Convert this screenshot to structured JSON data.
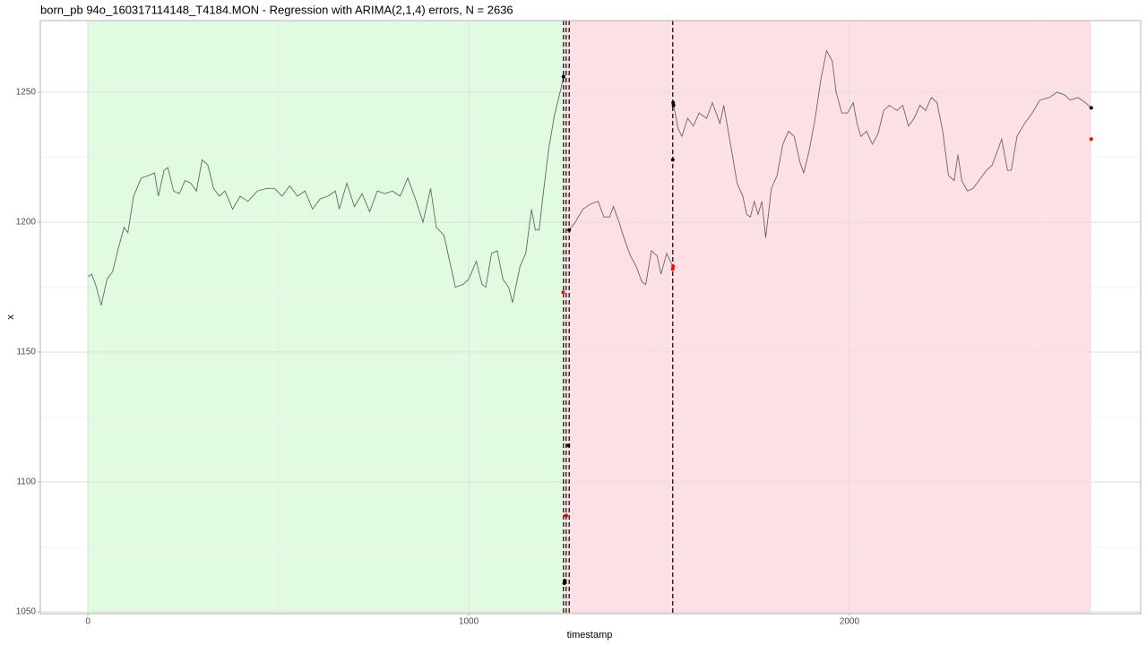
{
  "chart_data": {
    "type": "line",
    "title": "born_pb 94o_160317114148_T4184.MON - Regression with ARIMA(2,1,4) errors, N = 2636",
    "xlabel": "timestamp",
    "ylabel": "x",
    "xlim": [
      -125,
      2765
    ],
    "ylim": [
      1049.3,
      1277.6
    ],
    "xticks": [
      0,
      1000,
      2000
    ],
    "yticks": [
      1050,
      1100,
      1150,
      1200,
      1250
    ],
    "xminor": [
      500,
      1500,
      2500
    ],
    "yminor": [
      1075,
      1125,
      1175,
      1225
    ],
    "grid": true,
    "regions": [
      {
        "start": 0,
        "end": 1249,
        "color": "#e0fbe0"
      },
      {
        "start": 1249,
        "end": 2635,
        "color": "#fde0e3"
      }
    ],
    "vlines": [
      1249,
      1256,
      1264,
      1536
    ],
    "series": [
      {
        "color": "#666666",
        "x": [
          0,
          10,
          20,
          35,
          50,
          65,
          80,
          95,
          105,
          120,
          140,
          160,
          175,
          185,
          200,
          210,
          225,
          240,
          255,
          270,
          285,
          300,
          315,
          330,
          345,
          360,
          380,
          400,
          420,
          445,
          470,
          490,
          510,
          530,
          550,
          570,
          590,
          610,
          630,
          650,
          660,
          680,
          700,
          720,
          740,
          760,
          780,
          800,
          820,
          840,
          860,
          880,
          900,
          915,
          935,
          950,
          965,
          985,
          1000,
          1020,
          1035,
          1045,
          1060,
          1075,
          1090,
          1105,
          1115,
          1125,
          1135,
          1150,
          1165,
          1175,
          1185,
          1195,
          1210,
          1225,
          1240,
          1249
        ],
        "values": [
          1179,
          1180,
          1176,
          1168,
          1178,
          1181,
          1190,
          1198,
          1196,
          1210,
          1217,
          1218,
          1219,
          1210,
          1220,
          1221,
          1212,
          1211,
          1216,
          1215,
          1212,
          1224,
          1222,
          1213,
          1210,
          1212,
          1205,
          1210,
          1208,
          1212,
          1213,
          1213,
          1210,
          1214,
          1210,
          1212,
          1205,
          1209,
          1210,
          1212,
          1205,
          1215,
          1206,
          1211,
          1204,
          1212,
          1211,
          1212,
          1210,
          1217,
          1209,
          1200,
          1213,
          1198,
          1195,
          1185,
          1175,
          1176,
          1178,
          1185,
          1176,
          1175,
          1188,
          1189,
          1178,
          1175,
          1169,
          1176,
          1183,
          1188,
          1205,
          1197,
          1197,
          1210,
          1228,
          1241,
          1250,
          1256
        ]
      },
      {
        "color": "#666666",
        "x": [
          1264,
          1280,
          1300,
          1320,
          1340,
          1355,
          1370,
          1380,
          1395,
          1410,
          1425,
          1440,
          1455,
          1465,
          1480,
          1495,
          1505,
          1520,
          1536
        ],
        "values": [
          1197,
          1200,
          1205,
          1207,
          1208,
          1202,
          1202,
          1206,
          1200,
          1193,
          1187,
          1183,
          1177,
          1176,
          1189,
          1187,
          1180,
          1188,
          1183
        ]
      },
      {
        "color": "#666666",
        "x": [
          1537,
          1550,
          1560,
          1575,
          1590,
          1605,
          1625,
          1640,
          1660,
          1670,
          1690,
          1705,
          1720,
          1730,
          1740,
          1750,
          1760,
          1770,
          1780,
          1795,
          1810,
          1825,
          1840,
          1855,
          1870,
          1880,
          1895,
          1910,
          1925,
          1940,
          1955,
          1965,
          1980,
          1995,
          2010,
          2020,
          2030,
          2045,
          2060,
          2075,
          2090,
          2105,
          2125,
          2140,
          2155,
          2170,
          2185,
          2200,
          2215,
          2230,
          2245,
          2260,
          2275,
          2285,
          2295,
          2310,
          2325,
          2340,
          2360,
          2375,
          2390,
          2400,
          2415,
          2425,
          2440,
          2460,
          2480,
          2500,
          2525,
          2545,
          2565,
          2580,
          2600,
          2620,
          2635
        ],
        "values": [
          1246,
          1236,
          1233,
          1240,
          1237,
          1242,
          1240,
          1246,
          1238,
          1245,
          1228,
          1215,
          1210,
          1203,
          1202,
          1208,
          1203,
          1208,
          1194,
          1213,
          1218,
          1230,
          1235,
          1233,
          1223,
          1219,
          1228,
          1240,
          1255,
          1266,
          1262,
          1250,
          1242,
          1242,
          1246,
          1238,
          1233,
          1235,
          1230,
          1234,
          1243,
          1245,
          1243,
          1245,
          1237,
          1240,
          1245,
          1243,
          1248,
          1246,
          1235,
          1218,
          1216,
          1226,
          1216,
          1212,
          1213,
          1216,
          1220,
          1222,
          1228,
          1232,
          1220,
          1220,
          1233,
          1238,
          1242,
          1247,
          1248,
          1250,
          1249,
          1247,
          1248,
          1246,
          1244
        ]
      }
    ],
    "points": [
      {
        "color": "#000000",
        "x": [
          1249,
          1251,
          1252,
          1256,
          1262,
          1264,
          1536,
          1537,
          1538,
          2635
        ],
        "values": [
          1256,
          1061,
          1062,
          1087,
          1114,
          1197,
          1224,
          1246,
          1245,
          1244
        ]
      },
      {
        "color": "#ff0000",
        "x": [
          1248,
          1255,
          1536,
          1537,
          2635
        ],
        "values": [
          1173,
          1087,
          1182,
          1183,
          1232
        ]
      }
    ]
  }
}
